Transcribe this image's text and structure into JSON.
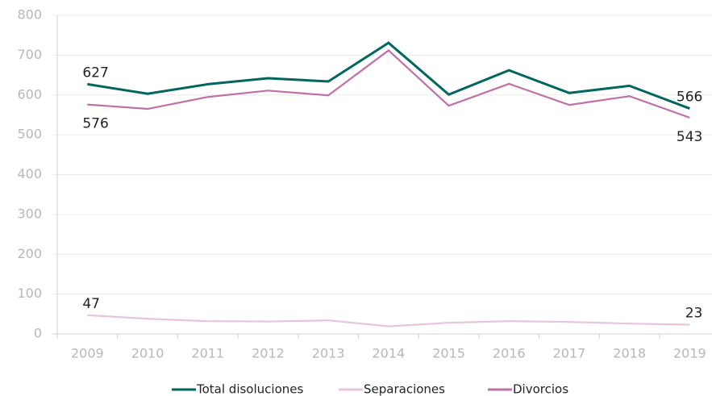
{
  "chart_data": {
    "type": "line",
    "categories": [
      "2009",
      "2010",
      "2011",
      "2012",
      "2013",
      "2014",
      "2015",
      "2016",
      "2017",
      "2018",
      "2019"
    ],
    "series": [
      {
        "name": "Total disoluciones",
        "color": "#00665e",
        "values": [
          627,
          603,
          627,
          642,
          634,
          731,
          601,
          662,
          605,
          623,
          566
        ]
      },
      {
        "name": "Separaciones",
        "color": "#e8c4dc",
        "values": [
          47,
          38,
          32,
          31,
          34,
          19,
          28,
          32,
          30,
          26,
          23
        ]
      },
      {
        "name": "Divorcios",
        "color": "#c06fa8",
        "values": [
          576,
          565,
          595,
          611,
          599,
          712,
          573,
          628,
          575,
          597,
          543
        ]
      }
    ],
    "ylim": [
      0,
      800
    ],
    "yticks": [
      0,
      100,
      200,
      300,
      400,
      500,
      600,
      700,
      800
    ],
    "grid": true
  }
}
